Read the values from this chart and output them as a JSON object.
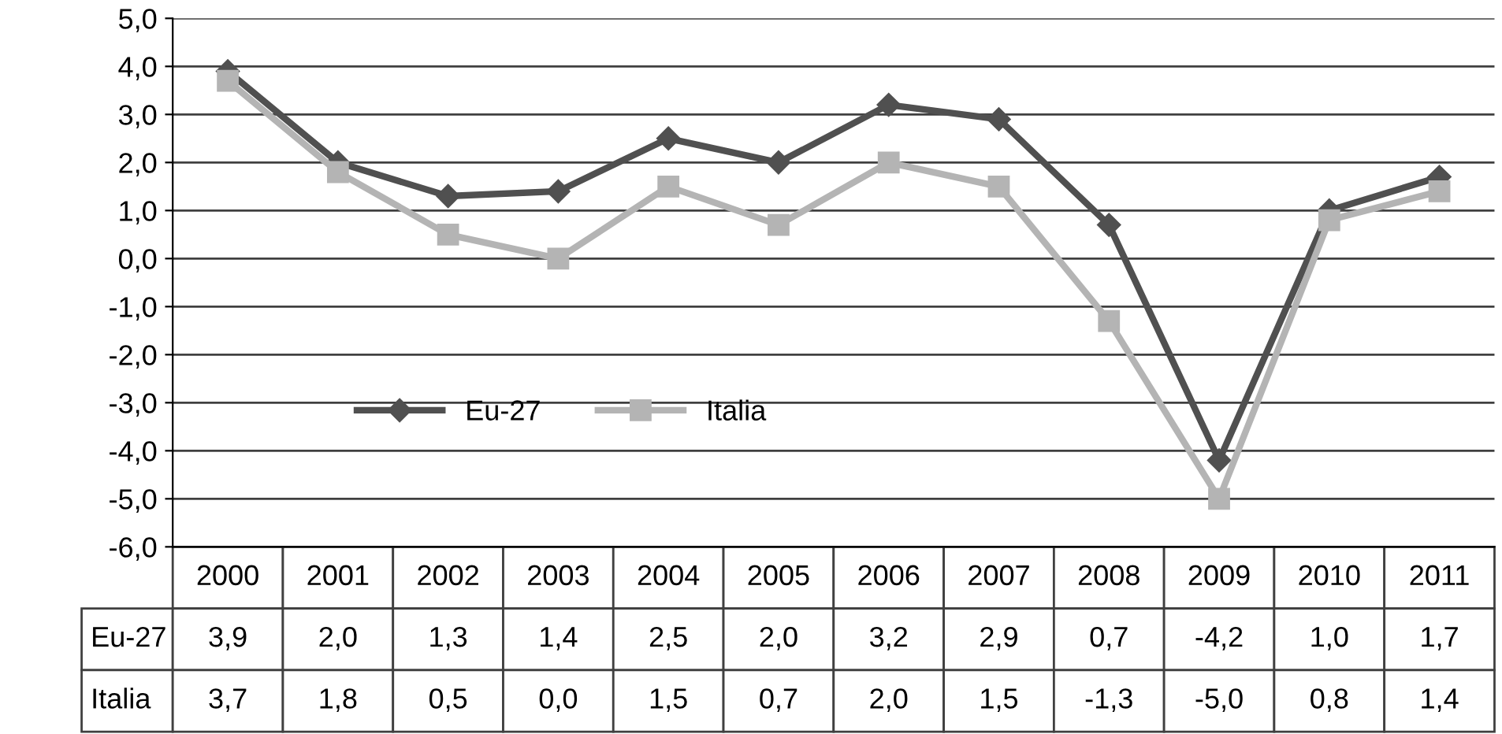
{
  "chart_data": {
    "type": "line",
    "categories": [
      "2000",
      "2001",
      "2002",
      "2003",
      "2004",
      "2005",
      "2006",
      "2007",
      "2008",
      "2009",
      "2010",
      "2011"
    ],
    "series": [
      {
        "name": "Eu-27",
        "color": "#505050",
        "marker": "diamond",
        "values": [
          3.9,
          2.0,
          1.3,
          1.4,
          2.5,
          2.0,
          3.2,
          2.9,
          0.7,
          -4.2,
          1.0,
          1.7
        ],
        "value_labels": [
          "3,9",
          "2,0",
          "1,3",
          "1,4",
          "2,5",
          "2,0",
          "3,2",
          "2,9",
          "0,7",
          "-4,2",
          "1,0",
          "1,7"
        ]
      },
      {
        "name": "Italia",
        "color": "#b4b4b4",
        "marker": "square",
        "values": [
          3.7,
          1.8,
          0.5,
          0.0,
          1.5,
          0.7,
          2.0,
          1.5,
          -1.3,
          -5.0,
          0.8,
          1.4
        ],
        "value_labels": [
          "3,7",
          "1,8",
          "0,5",
          "0,0",
          "1,5",
          "0,7",
          "2,0",
          "1,5",
          "-1,3",
          "-5,0",
          "0,8",
          "1,4"
        ]
      }
    ],
    "ylim": [
      -6,
      5
    ],
    "yticks": [
      {
        "value": -6,
        "label": "-6,0"
      },
      {
        "value": -5,
        "label": "-5,0"
      },
      {
        "value": -4,
        "label": "-4,0"
      },
      {
        "value": -3,
        "label": "-3,0"
      },
      {
        "value": -2,
        "label": "-2,0"
      },
      {
        "value": -1,
        "label": "-1,0"
      },
      {
        "value": 0,
        "label": "0,0"
      },
      {
        "value": 1,
        "label": "1,0"
      },
      {
        "value": 2,
        "label": "2,0"
      },
      {
        "value": 3,
        "label": "3,0"
      },
      {
        "value": 4,
        "label": "4,0"
      },
      {
        "value": 5,
        "label": "5,0"
      }
    ],
    "grid": "y",
    "legend": "lower left",
    "line_style": "solid"
  }
}
